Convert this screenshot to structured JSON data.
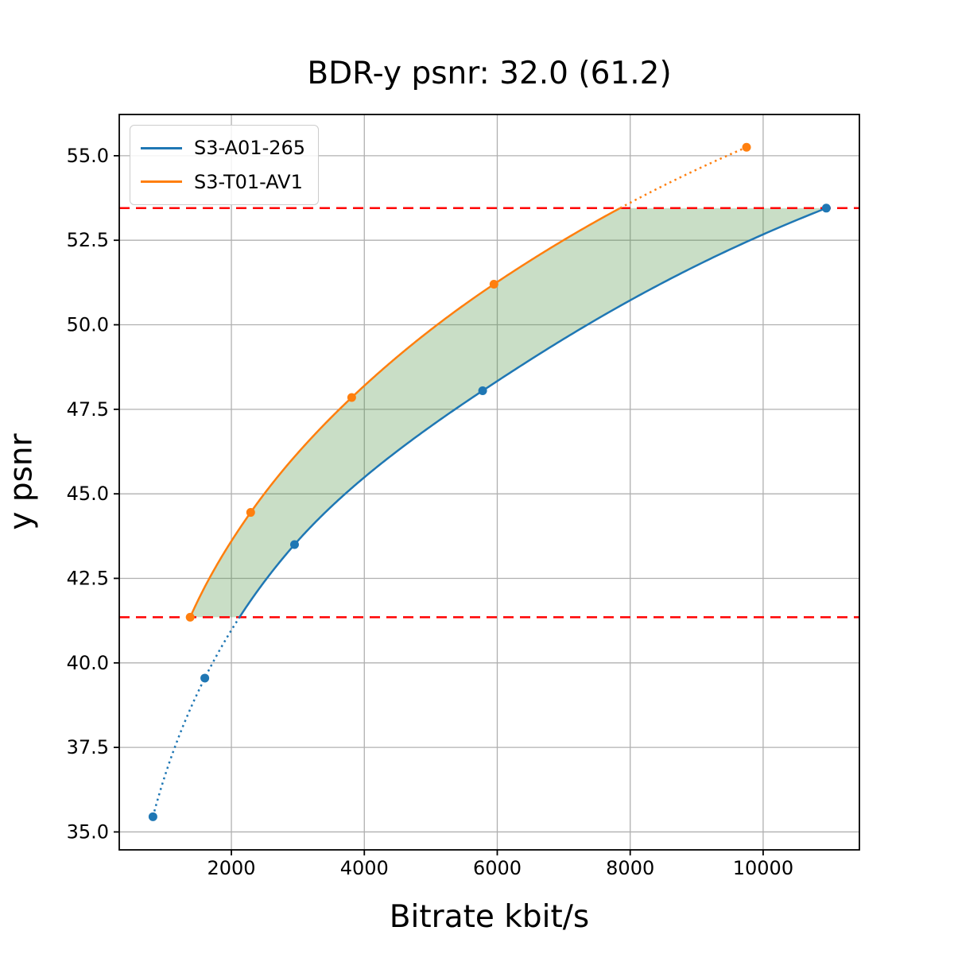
{
  "title": "BDR-y psnr: 32.0 (61.2)",
  "chart_data": {
    "type": "line",
    "title": "BDR-y psnr: 32.0 (61.2)",
    "xlabel": "Bitrate kbit/s",
    "ylabel": "y psnr",
    "xlim": [
      313,
      11448
    ],
    "ylim": [
      34.47,
      56.22
    ],
    "x_ticks": [
      2000,
      4000,
      6000,
      8000,
      10000
    ],
    "y_ticks": [
      35.0,
      37.5,
      40.0,
      42.5,
      45.0,
      47.5,
      50.0,
      52.5,
      55.0
    ],
    "grid": true,
    "grid_color": "#b0b0b0",
    "legend_position": "upper left",
    "series": [
      {
        "name": "S3-A01-265",
        "color": "#1f77b4",
        "interpolation": "pchip-log-x",
        "points": [
          {
            "bitrate_kbit_s": 820,
            "y_psnr": 35.45
          },
          {
            "bitrate_kbit_s": 1600,
            "y_psnr": 39.55
          },
          {
            "bitrate_kbit_s": 2950,
            "y_psnr": 43.5
          },
          {
            "bitrate_kbit_s": 5780,
            "y_psnr": 48.05
          },
          {
            "bitrate_kbit_s": 10950,
            "y_psnr": 53.45
          }
        ]
      },
      {
        "name": "S3-T01-AV1",
        "color": "#ff7f0e",
        "interpolation": "pchip-log-x",
        "points": [
          {
            "bitrate_kbit_s": 1380,
            "y_psnr": 41.35
          },
          {
            "bitrate_kbit_s": 2290,
            "y_psnr": 44.45
          },
          {
            "bitrate_kbit_s": 3810,
            "y_psnr": 47.85
          },
          {
            "bitrate_kbit_s": 5950,
            "y_psnr": 51.2
          },
          {
            "bitrate_kbit_s": 9750,
            "y_psnr": 55.25
          }
        ]
      }
    ],
    "hlines": [
      {
        "y": 41.35,
        "color": "#ff0000",
        "style": "dashed"
      },
      {
        "y": 53.45,
        "color": "#ff0000",
        "style": "dashed"
      }
    ],
    "line_style_rule": "solid inside psnr overlap range [41.35, 53.45], dotted outside",
    "shaded_region": {
      "between": "the two curves, clipped to psnr range [41.35, 53.45]",
      "color": "#4c9141",
      "opacity": 0.3
    }
  },
  "legend": {
    "items": [
      {
        "label": "S3-A01-265",
        "color": "#1f77b4"
      },
      {
        "label": "S3-T01-AV1",
        "color": "#ff7f0e"
      }
    ]
  }
}
